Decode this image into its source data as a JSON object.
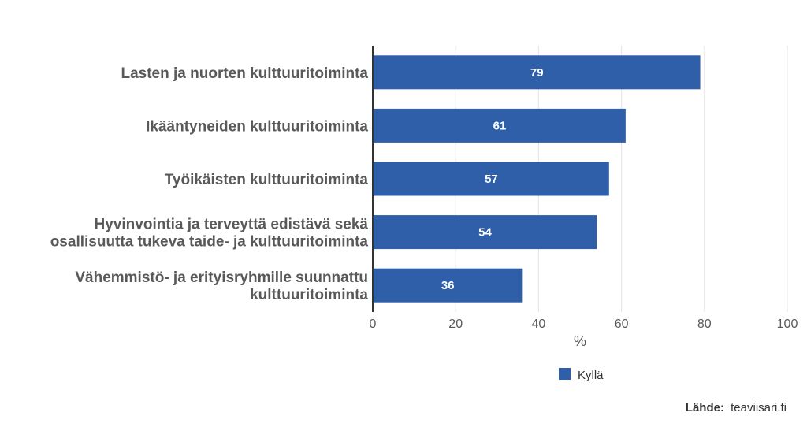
{
  "chart_data": {
    "type": "bar",
    "orientation": "horizontal",
    "categories": [
      [
        "Lasten ja nuorten kulttuuritoiminta"
      ],
      [
        "Ikääntyneiden kulttuuritoiminta"
      ],
      [
        "Työikäisten kulttuuritoiminta"
      ],
      [
        "Hyvinvointia ja terveyttä edistävä sekä",
        "osallisuutta tukeva taide- ja kulttuuritoiminta"
      ],
      [
        "Vähemmistö- ja erityisryhmille suunnattu",
        "kulttuuritoiminta"
      ]
    ],
    "series": [
      {
        "name": "Kyllä",
        "values": [
          79,
          61,
          57,
          54,
          36
        ],
        "color": "#2e5fa8"
      }
    ],
    "xlabel": "%",
    "xlim": [
      0,
      100
    ],
    "xticks": [
      0,
      20,
      40,
      60,
      80,
      100
    ],
    "grid": true,
    "legend_position": "bottom-center",
    "data_labels": true
  },
  "source": {
    "label": "Lähde:",
    "text": "teaviisari.fi"
  }
}
